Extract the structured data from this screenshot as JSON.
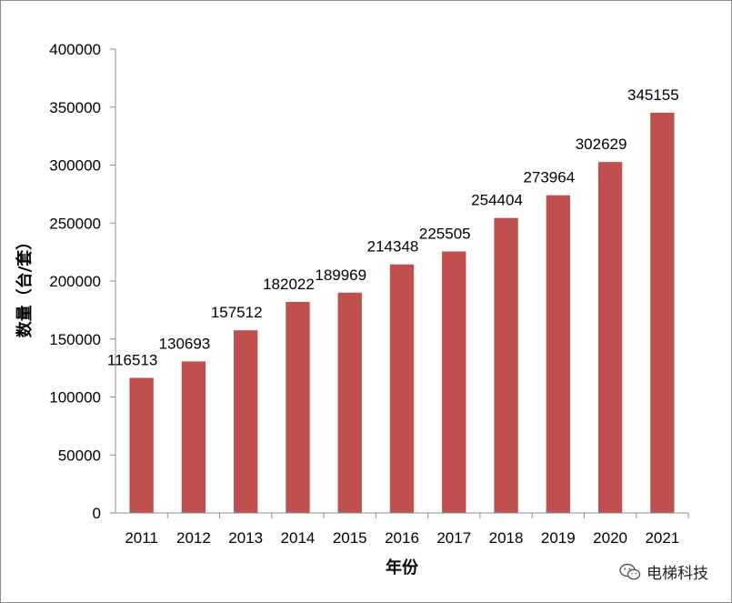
{
  "chart_data": {
    "type": "bar",
    "categories": [
      "2011",
      "2012",
      "2013",
      "2014",
      "2015",
      "2016",
      "2017",
      "2018",
      "2019",
      "2020",
      "2021"
    ],
    "values": [
      116513,
      130693,
      157512,
      182022,
      189969,
      214348,
      225505,
      254404,
      273964,
      302629,
      345155
    ],
    "xlabel": "年份",
    "ylabel": "数量（台/套）",
    "ylim": [
      0,
      400000
    ],
    "yticks": [
      0,
      50000,
      100000,
      150000,
      200000,
      250000,
      300000,
      350000,
      400000
    ],
    "bar_color": "#c0504d",
    "data_labels": true,
    "grid": false,
    "legend": "none"
  },
  "watermark": {
    "text": "电梯科技",
    "icon": "wechat-icon"
  }
}
